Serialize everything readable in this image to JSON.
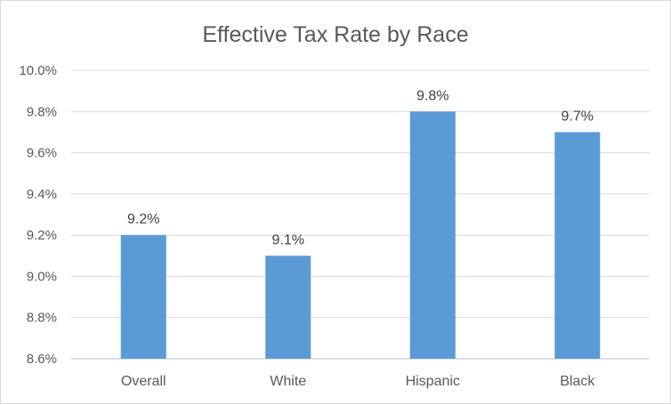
{
  "chart_data": {
    "type": "bar",
    "title": "Effective Tax Rate by Race",
    "xlabel": "",
    "ylabel": "",
    "categories": [
      "Overall",
      "White",
      "Hispanic",
      "Black"
    ],
    "values": [
      9.2,
      9.1,
      9.8,
      9.7
    ],
    "data_labels": [
      "9.2%",
      "9.1%",
      "9.8%",
      "9.7%"
    ],
    "ylim": [
      8.6,
      10.0
    ],
    "yticks": [
      8.6,
      8.8,
      9.0,
      9.2,
      9.4,
      9.6,
      9.8,
      10.0
    ],
    "ytick_labels": [
      "8.6%",
      "8.8%",
      "9.0%",
      "9.2%",
      "9.4%",
      "9.6%",
      "9.8%",
      "10.0%"
    ],
    "grid": true,
    "legend": "none",
    "bar_color": "#5B9BD5"
  }
}
